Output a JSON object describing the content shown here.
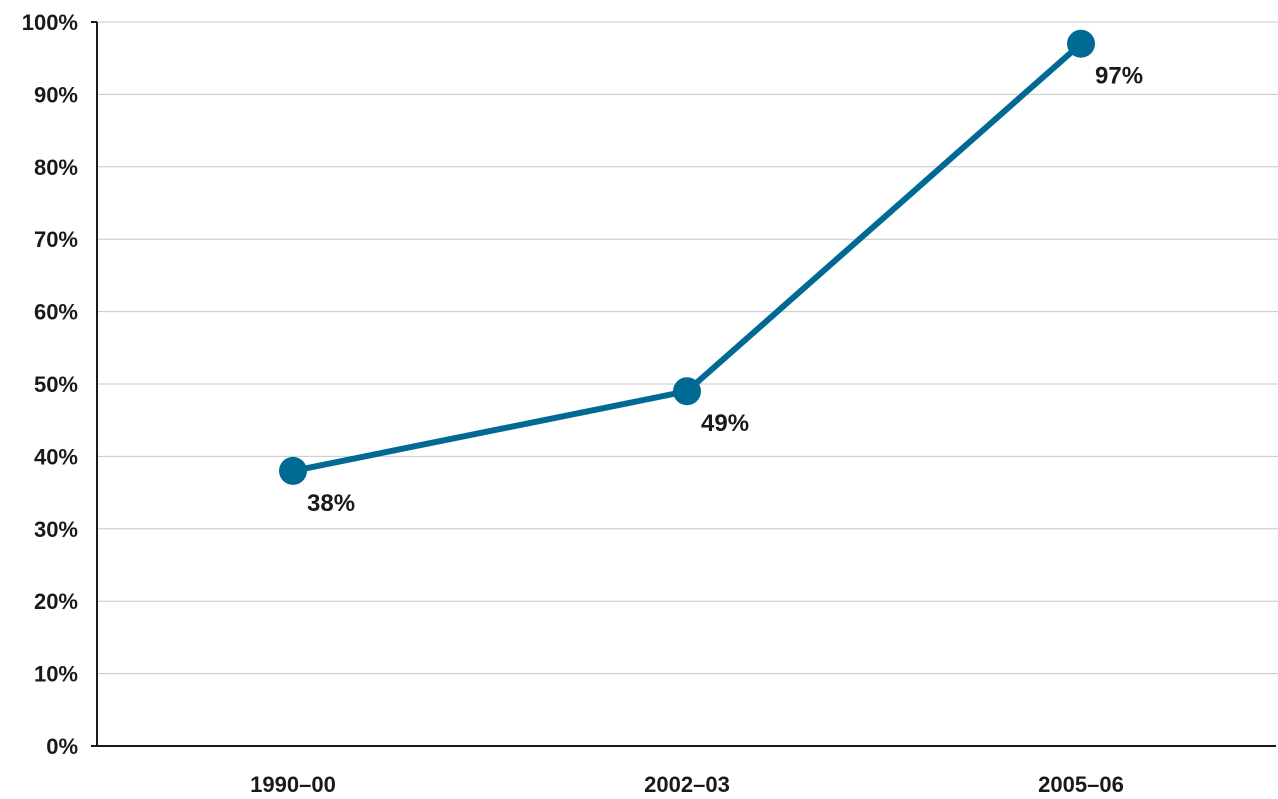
{
  "chart_data": {
    "type": "line",
    "categories": [
      "1990–00",
      "2002–03",
      "2005–06"
    ],
    "series": [
      {
        "values": [
          38,
          49,
          97
        ],
        "data_labels": [
          "38%",
          "49%",
          "97%"
        ]
      }
    ],
    "ylim": [
      0,
      100
    ],
    "yticks": [
      0,
      10,
      20,
      30,
      40,
      50,
      60,
      70,
      80,
      90,
      100
    ],
    "ytick_labels": [
      "0%",
      "10%",
      "20%",
      "30%",
      "40%",
      "50%",
      "60%",
      "70%",
      "80%",
      "90%",
      "100%"
    ],
    "grid": true,
    "colors": {
      "line": "#006a94",
      "grid": "#c8c8c8",
      "axis": "#1a1a1a"
    }
  }
}
